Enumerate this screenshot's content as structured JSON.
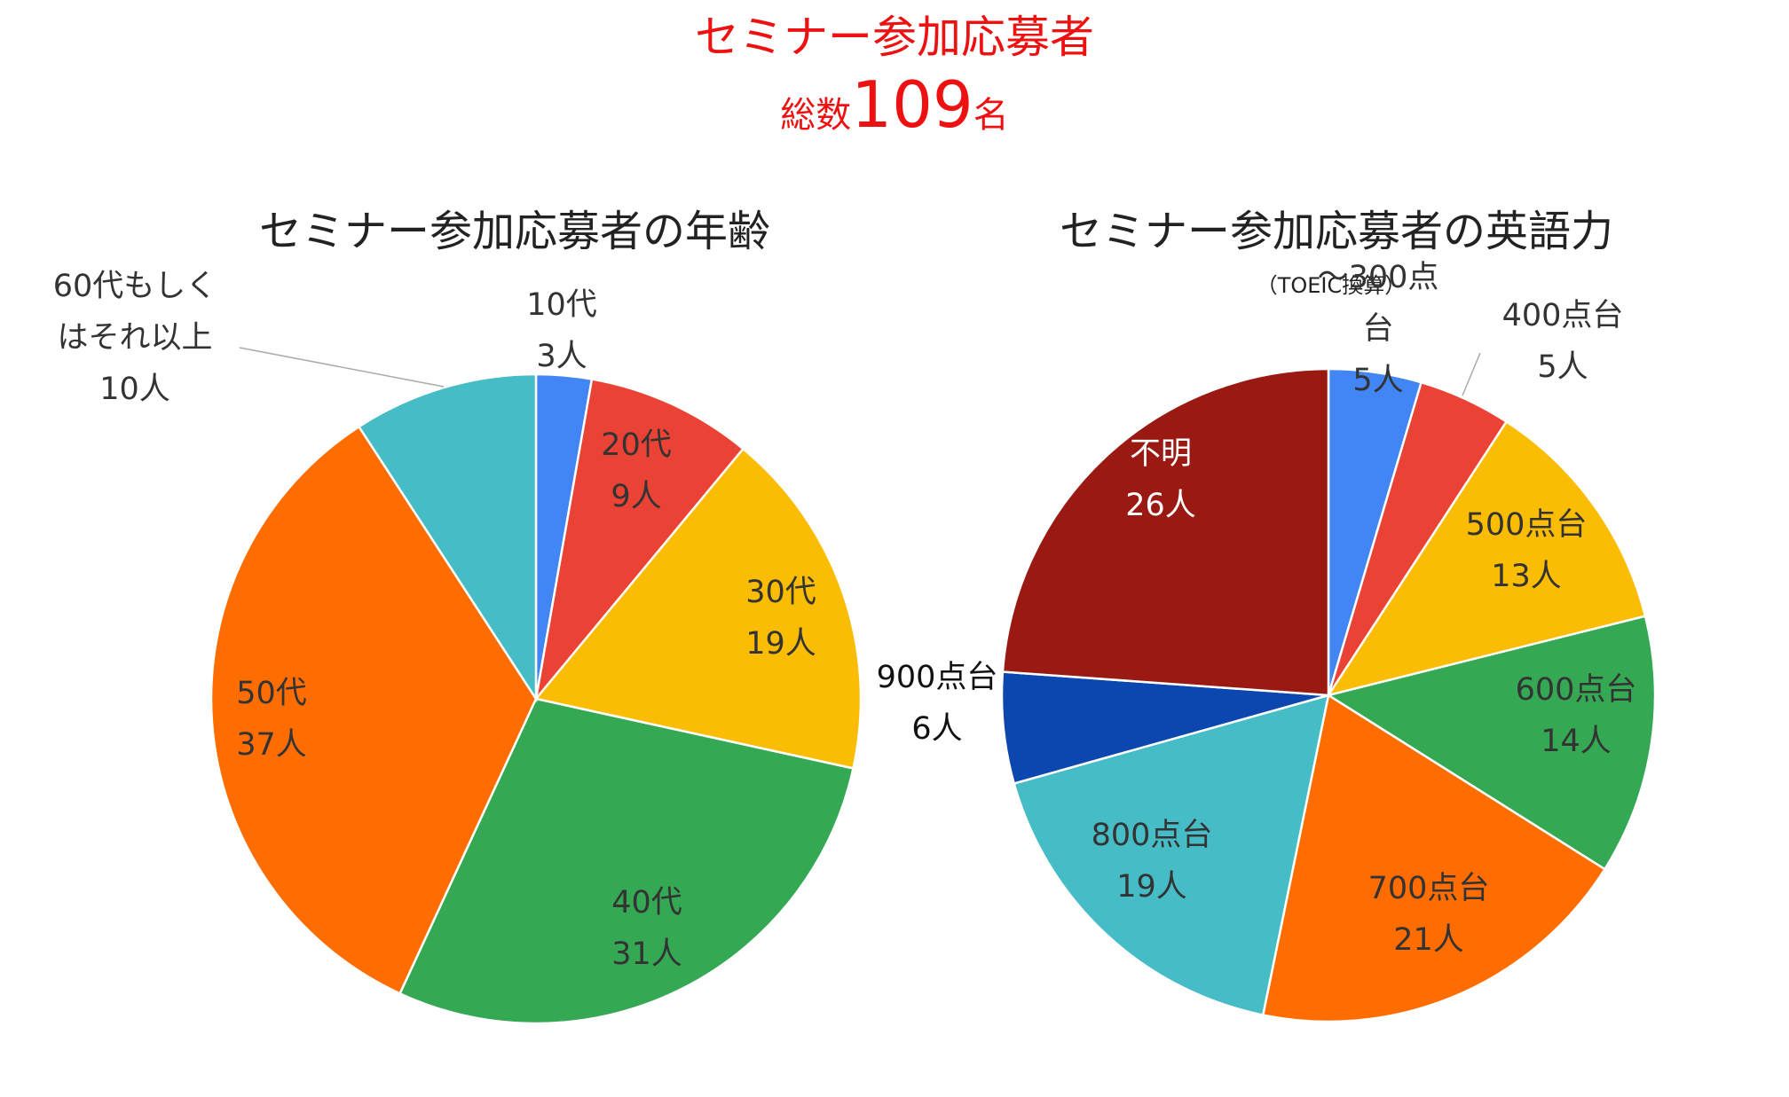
{
  "header": {
    "line1": "セミナー参加応募者",
    "total_prefix": "総数",
    "total_value": "109",
    "total_suffix": "名"
  },
  "chart_data": [
    {
      "type": "pie",
      "title": "セミナー参加応募者の年齢",
      "start_angle_deg": 0,
      "direction": "clockwise",
      "slices": [
        {
          "label": "10代",
          "value_text": "3人",
          "value": 3,
          "color": "#4285f4",
          "text_color": "#333333"
        },
        {
          "label": "20代",
          "value_text": "9人",
          "value": 9,
          "color": "#ea4335",
          "text_color": "#333333"
        },
        {
          "label": "30代",
          "value_text": "19人",
          "value": 19,
          "color": "#fbbc04",
          "text_color": "#333333"
        },
        {
          "label": "40代",
          "value_text": "31人",
          "value": 31,
          "color": "#34a853",
          "text_color": "#333333"
        },
        {
          "label": "50代",
          "value_text": "37人",
          "value": 37,
          "color": "#ff6d01",
          "text_color": "#333333"
        },
        {
          "label": "60代もしくはそれ以上",
          "label_lines": [
            "60代もしく",
            "はそれ以上"
          ],
          "value_text": "10人",
          "value": 10,
          "color": "#46bdc6",
          "text_color": "#333333"
        }
      ]
    },
    {
      "type": "pie",
      "title": "セミナー参加応募者の英語力",
      "subtitle": "（TOEIC換算）",
      "start_angle_deg": 0,
      "direction": "clockwise",
      "slices": [
        {
          "label": "～300点台",
          "label_lines": [
            "～300点",
            "台"
          ],
          "value_text": "5人",
          "value": 5,
          "color": "#4285f4",
          "text_color": "#333333"
        },
        {
          "label": "400点台",
          "value_text": "5人",
          "value": 5,
          "color": "#ea4335",
          "text_color": "#333333"
        },
        {
          "label": "500点台",
          "value_text": "13人",
          "value": 13,
          "color": "#fbbc04",
          "text_color": "#333333"
        },
        {
          "label": "600点台",
          "value_text": "14人",
          "value": 14,
          "color": "#34a853",
          "text_color": "#333333"
        },
        {
          "label": "700点台",
          "value_text": "21人",
          "value": 21,
          "color": "#ff6d01",
          "text_color": "#333333"
        },
        {
          "label": "800点台",
          "value_text": "19人",
          "value": 19,
          "color": "#46bdc6",
          "text_color": "#333333"
        },
        {
          "label": "900点台",
          "value_text": "6人",
          "value": 6,
          "color": "#0b47ae",
          "text_color": "#111111"
        },
        {
          "label": "不明",
          "value_text": "26人",
          "value": 26,
          "color": "#9b1913",
          "text_color": "#ffffff"
        }
      ]
    }
  ]
}
